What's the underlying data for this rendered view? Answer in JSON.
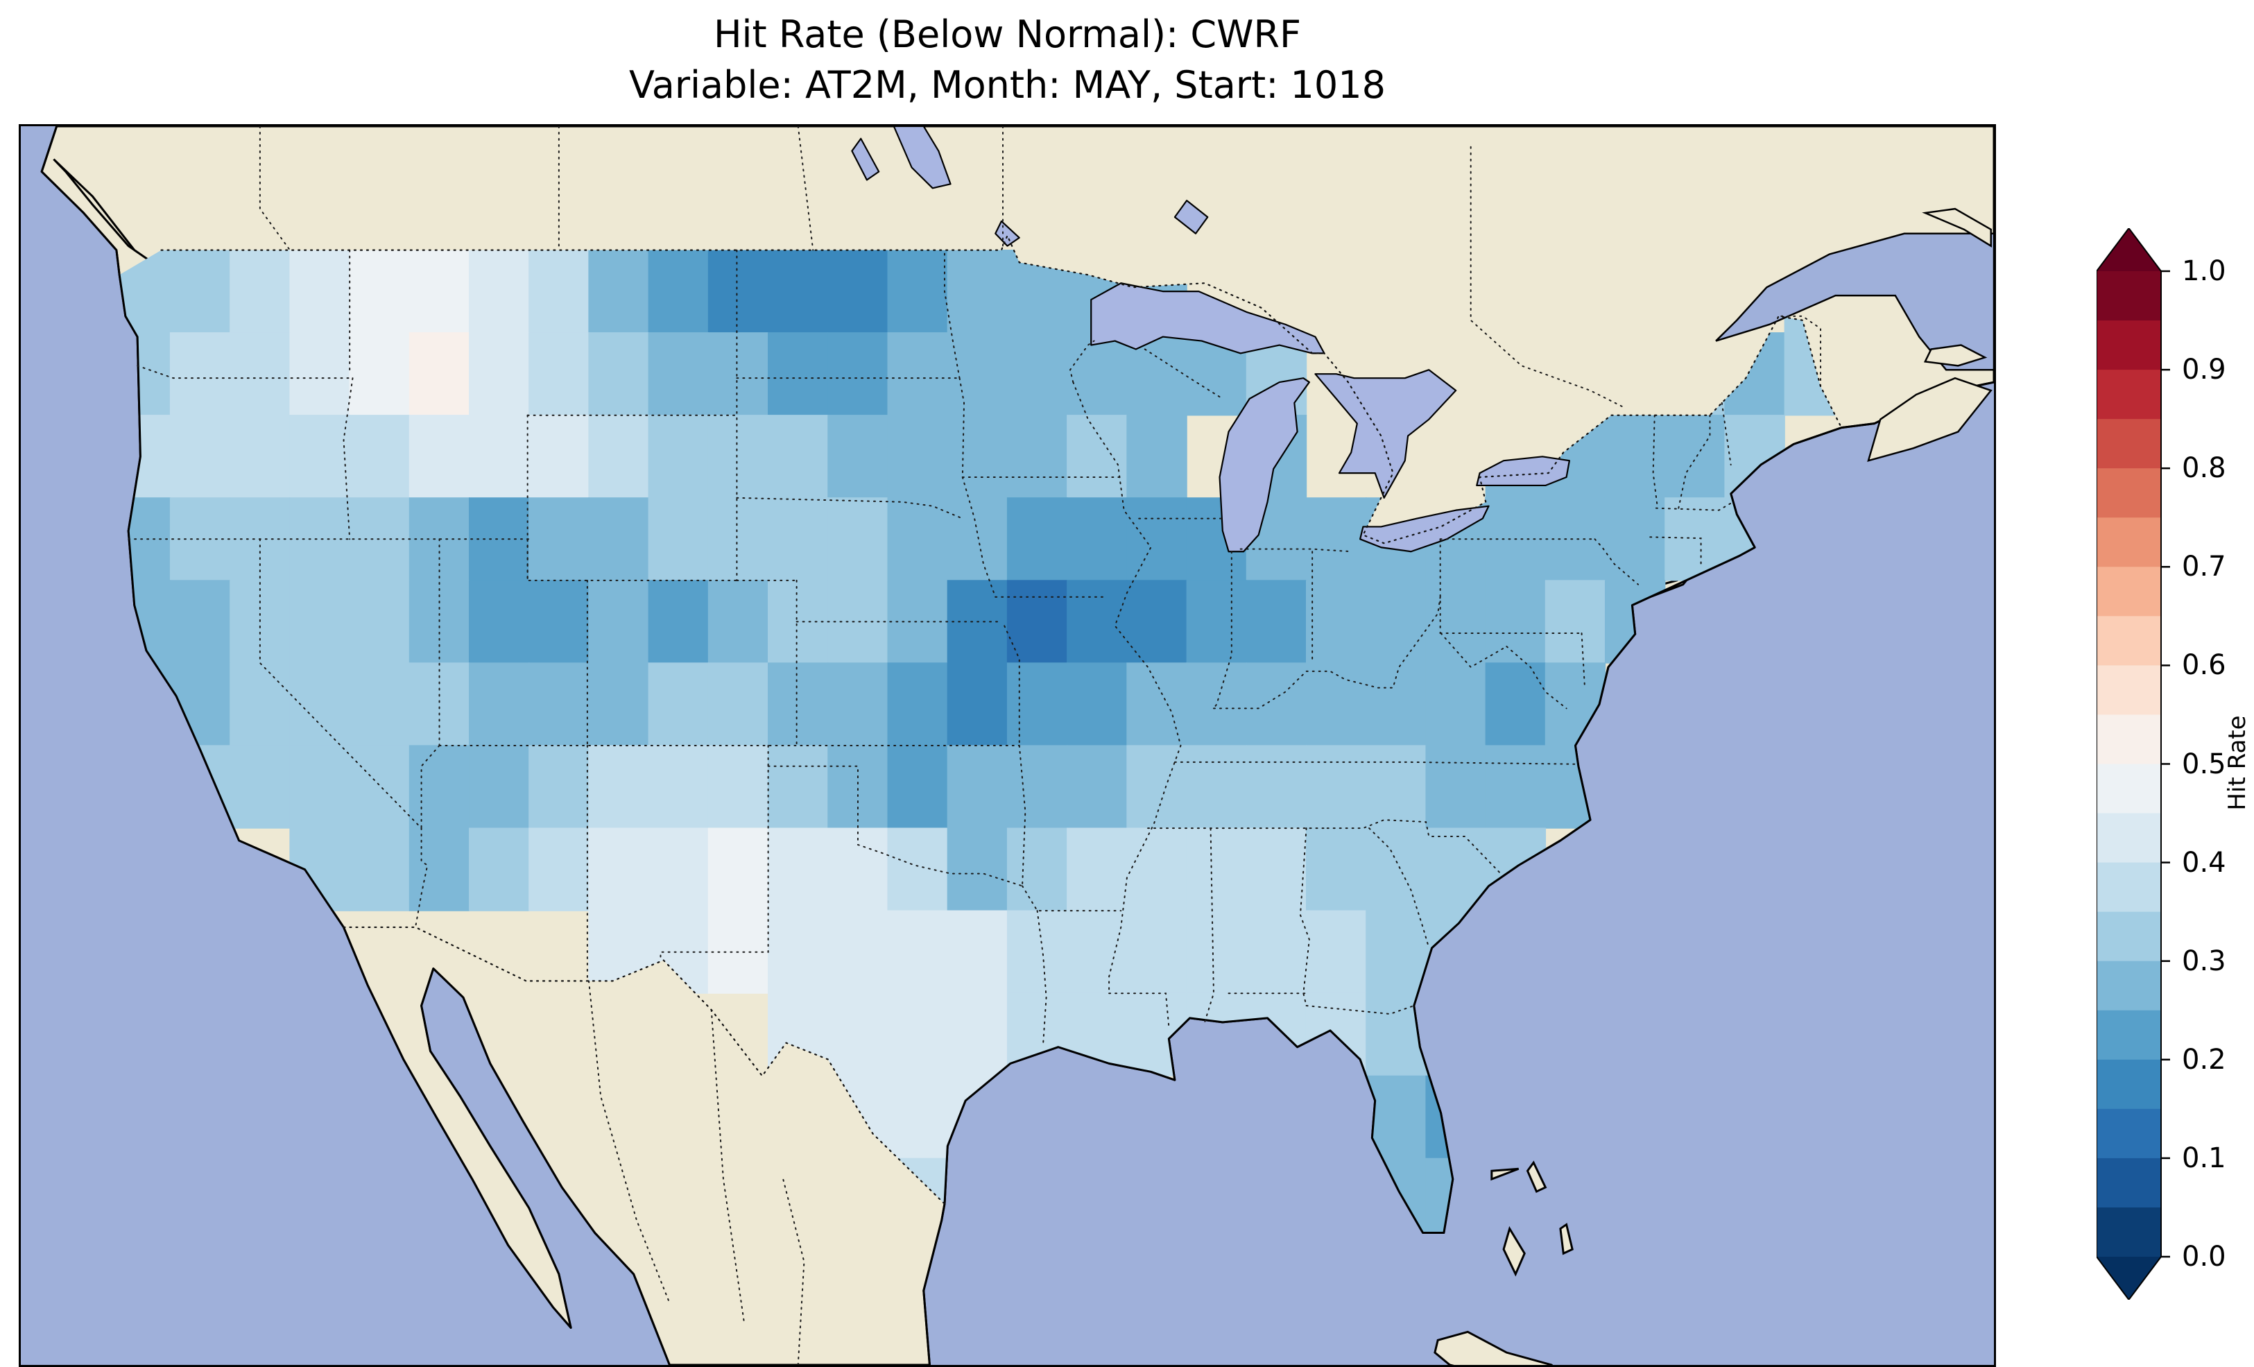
{
  "title": {
    "line1": "Hit Rate (Below Normal): CWRF",
    "line2": "Variable: AT2M, Month: MAY, Start: 1018"
  },
  "colorbar": {
    "label": "Hit Rate",
    "ticks": [
      "1.0",
      "0.9",
      "0.8",
      "0.7",
      "0.6",
      "0.5",
      "0.4",
      "0.3",
      "0.2",
      "0.1",
      "0.0"
    ],
    "colors": [
      "#0c3e74",
      "#1a5899",
      "#2a71b2",
      "#3a88bd",
      "#57a0ca",
      "#7eb8d7",
      "#a2cde3",
      "#c1ddec",
      "#dae9f2",
      "#edf2f5",
      "#f8f0eb",
      "#fbe2d3",
      "#fbceb6",
      "#f6b293",
      "#ec9475",
      "#dd715a",
      "#cd4e45",
      "#bb2a34",
      "#9f1228",
      "#7a0622"
    ],
    "extend_low_color": "#053061",
    "extend_high_color": "#67001f"
  },
  "map_colors": {
    "ocean": "#9fb0da",
    "land": "#eee9d4",
    "lake": "#a9b6e2",
    "border": "#000000"
  },
  "chart_data": {
    "type": "heatmap",
    "title": "Hit Rate (Below Normal): CWRF",
    "subtitle": "Variable: AT2M, Month: MAY, Start: 1018",
    "colorbar_label": "Hit Rate",
    "value_range": [
      0.0,
      1.0
    ],
    "level_step": 0.05,
    "colormap": "RdBu reversed: dark blue = 0.0, near-white = 0.5, dark red = 1.0, colorbar extended with arrow tips both ends",
    "region": "Contiguous United States; surrounding Canada/Mexico shown as plain land, oceans and Great Lakes in light blue, dotted state and national borders",
    "grid": {
      "cell_deg": 2,
      "lon_min": -125,
      "lat_max": 49,
      "cols": 29,
      "rows": 12,
      "values": [
        [
          0.35,
          0.35,
          0.4,
          0.45,
          0.5,
          0.5,
          0.45,
          0.4,
          0.3,
          0.25,
          0.2,
          0.2,
          0.2,
          0.25,
          0.3,
          0.3,
          0.3,
          0.3,
          null,
          null,
          null,
          null,
          null,
          null,
          null,
          null,
          null,
          null,
          0.35
        ],
        [
          0.35,
          0.4,
          0.4,
          0.45,
          0.5,
          0.55,
          0.45,
          0.4,
          0.35,
          0.3,
          0.3,
          0.25,
          0.25,
          0.3,
          0.3,
          0.3,
          0.3,
          0.3,
          0.3,
          0.35,
          null,
          null,
          null,
          null,
          null,
          0.35,
          0.35,
          0.3,
          0.35
        ],
        [
          0.4,
          0.4,
          0.4,
          0.4,
          0.4,
          0.45,
          0.45,
          0.45,
          0.4,
          0.35,
          0.35,
          0.35,
          0.3,
          0.3,
          0.3,
          0.3,
          0.35,
          0.3,
          null,
          0.3,
          null,
          null,
          null,
          0.3,
          0.3,
          0.3,
          0.3,
          0.35,
          null
        ],
        [
          0.3,
          0.35,
          0.35,
          0.35,
          0.35,
          0.3,
          0.25,
          0.3,
          0.3,
          0.35,
          0.35,
          0.35,
          0.35,
          0.3,
          0.3,
          0.25,
          0.25,
          0.25,
          0.25,
          0.3,
          0.3,
          0.3,
          0.3,
          0.3,
          0.3,
          0.3,
          0.35,
          0.35,
          null
        ],
        [
          0.3,
          0.3,
          0.35,
          0.35,
          0.35,
          0.3,
          0.25,
          0.25,
          0.3,
          0.25,
          0.3,
          0.35,
          0.35,
          0.3,
          0.2,
          0.15,
          0.2,
          0.2,
          0.25,
          0.25,
          0.3,
          0.3,
          0.3,
          0.3,
          0.35,
          0.3,
          null,
          null,
          null
        ],
        [
          0.3,
          0.3,
          0.35,
          0.35,
          0.35,
          0.35,
          0.3,
          0.3,
          0.3,
          0.35,
          0.35,
          0.3,
          0.3,
          0.25,
          0.2,
          0.25,
          0.25,
          0.3,
          0.3,
          0.3,
          0.3,
          0.3,
          0.3,
          0.25,
          0.3,
          null,
          null,
          null,
          null
        ],
        [
          null,
          0.35,
          0.35,
          0.35,
          0.35,
          0.3,
          0.3,
          0.35,
          0.4,
          0.4,
          0.4,
          0.35,
          0.3,
          0.25,
          0.3,
          0.3,
          0.3,
          0.35,
          0.35,
          0.35,
          0.35,
          0.35,
          0.3,
          0.3,
          0.3,
          null,
          null,
          null,
          null
        ],
        [
          null,
          null,
          null,
          0.35,
          0.35,
          0.3,
          0.35,
          0.4,
          0.45,
          0.45,
          0.5,
          0.45,
          0.45,
          0.4,
          0.3,
          0.35,
          0.4,
          0.4,
          0.4,
          0.4,
          0.35,
          0.35,
          0.35,
          0.35,
          null,
          null,
          null,
          null,
          null
        ],
        [
          null,
          null,
          null,
          null,
          null,
          null,
          null,
          null,
          0.45,
          0.45,
          0.5,
          0.45,
          0.45,
          0.45,
          0.45,
          0.4,
          0.4,
          0.4,
          0.4,
          0.4,
          0.4,
          0.35,
          0.35,
          null,
          null,
          null,
          null,
          null,
          null
        ],
        [
          null,
          null,
          null,
          null,
          null,
          null,
          null,
          null,
          null,
          null,
          null,
          0.45,
          0.45,
          0.45,
          0.45,
          0.4,
          0.4,
          0.4,
          0.4,
          0.4,
          0.4,
          0.35,
          0.35,
          null,
          null,
          null,
          null,
          null,
          null
        ],
        [
          null,
          null,
          null,
          null,
          null,
          null,
          null,
          null,
          null,
          null,
          null,
          null,
          0.45,
          0.45,
          0.45,
          null,
          null,
          null,
          null,
          null,
          null,
          0.3,
          0.25,
          null,
          null,
          null,
          null,
          null,
          null
        ],
        [
          null,
          null,
          null,
          null,
          null,
          null,
          null,
          null,
          null,
          null,
          null,
          null,
          null,
          0.4,
          null,
          null,
          null,
          null,
          null,
          null,
          null,
          0.3,
          0.3,
          null,
          null,
          null,
          null,
          null,
          null
        ]
      ]
    },
    "notable_features": [
      "Most of the CONUS shows hit rates of 0.2-0.45 (blues)",
      "Darkest blues (0.10-0.20) over the Iowa/Missouri/Illinois area and northern Plains (Dakotas)",
      "Pale near-white values (0.45-0.55) over Texas and parts of Montana",
      "Small warm pink patch (0.55-0.60) near the Idaho-Montana border"
    ]
  }
}
